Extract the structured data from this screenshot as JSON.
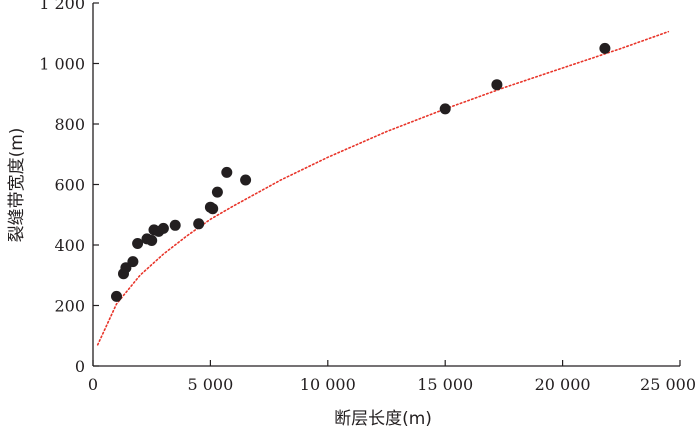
{
  "chart_data": {
    "type": "scatter",
    "xlabel": "断层长度(m)",
    "ylabel": "裂缝带宽度(m)",
    "xlim": [
      0,
      25000
    ],
    "ylim": [
      0,
      1200
    ],
    "x_ticks": [
      0,
      5000,
      10000,
      15000,
      20000,
      25000
    ],
    "x_tick_labels": [
      "0",
      "5 000",
      "10 000",
      "15 000",
      "20 000",
      "25 000"
    ],
    "y_ticks": [
      0,
      200,
      400,
      600,
      800,
      1000,
      1200
    ],
    "y_tick_labels": [
      "0",
      "200",
      "400",
      "600",
      "800",
      "1 000",
      "1 200"
    ],
    "grid": false,
    "points": [
      {
        "x": 1000,
        "y": 230
      },
      {
        "x": 1300,
        "y": 305
      },
      {
        "x": 1400,
        "y": 325
      },
      {
        "x": 1700,
        "y": 345
      },
      {
        "x": 1900,
        "y": 405
      },
      {
        "x": 2300,
        "y": 420
      },
      {
        "x": 2500,
        "y": 415
      },
      {
        "x": 2600,
        "y": 450
      },
      {
        "x": 2800,
        "y": 445
      },
      {
        "x": 3000,
        "y": 455
      },
      {
        "x": 3500,
        "y": 465
      },
      {
        "x": 4500,
        "y": 470
      },
      {
        "x": 5000,
        "y": 525
      },
      {
        "x": 5100,
        "y": 520
      },
      {
        "x": 5300,
        "y": 575
      },
      {
        "x": 5700,
        "y": 640
      },
      {
        "x": 6500,
        "y": 615
      },
      {
        "x": 15000,
        "y": 850
      },
      {
        "x": 17200,
        "y": 930
      },
      {
        "x": 21800,
        "y": 1050
      }
    ],
    "trendline": {
      "style": "dotted",
      "color": "#e8352a",
      "points": [
        {
          "x": 200,
          "y": 70
        },
        {
          "x": 1000,
          "y": 205
        },
        {
          "x": 2000,
          "y": 300
        },
        {
          "x": 3000,
          "y": 370
        },
        {
          "x": 4000,
          "y": 430
        },
        {
          "x": 5000,
          "y": 485
        },
        {
          "x": 6000,
          "y": 530
        },
        {
          "x": 8000,
          "y": 615
        },
        {
          "x": 10000,
          "y": 690
        },
        {
          "x": 12500,
          "y": 775
        },
        {
          "x": 15000,
          "y": 850
        },
        {
          "x": 17500,
          "y": 920
        },
        {
          "x": 20000,
          "y": 985
        },
        {
          "x": 22500,
          "y": 1050
        },
        {
          "x": 24500,
          "y": 1105
        }
      ]
    },
    "colors": {
      "axis": "#231f20",
      "marker": "#231f20",
      "trendline": "#e8352a"
    }
  }
}
